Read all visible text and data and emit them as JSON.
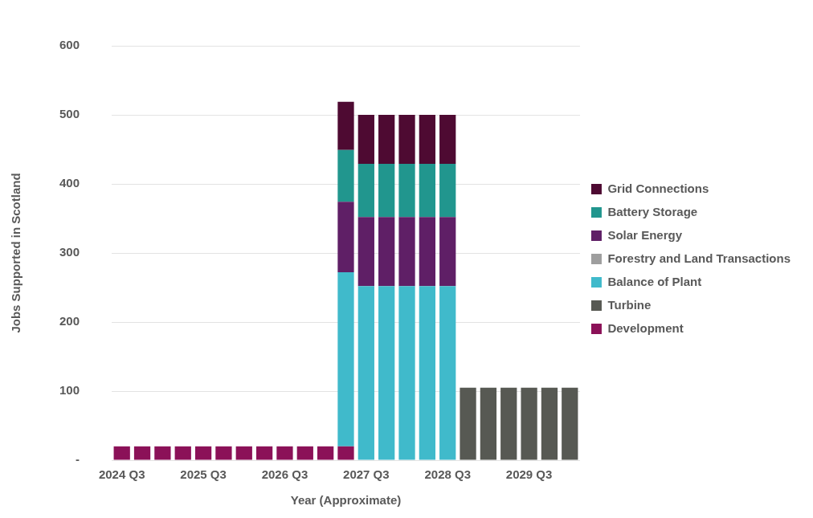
{
  "chart_data": {
    "type": "bar",
    "stacked": true,
    "xlabel": "Year (Approximate)",
    "ylabel": "Jobs Supported in Scotland",
    "categories": [
      "2024 Q3",
      null,
      null,
      null,
      "2025 Q3",
      null,
      null,
      null,
      "2026 Q3",
      null,
      null,
      null,
      "2027 Q3",
      null,
      null,
      null,
      "2028 Q3",
      null,
      null,
      null,
      "2029 Q3",
      null,
      null
    ],
    "series": [
      {
        "name": "Development",
        "color": "#8b1158",
        "values": [
          20,
          20,
          20,
          20,
          20,
          20,
          20,
          20,
          20,
          20,
          20,
          20,
          null,
          null,
          null,
          null,
          null,
          null,
          null,
          null,
          null,
          null,
          null
        ]
      },
      {
        "name": "Turbine",
        "color": "#575953",
        "values": [
          null,
          null,
          null,
          null,
          null,
          null,
          null,
          null,
          null,
          null,
          null,
          null,
          null,
          null,
          null,
          null,
          null,
          105,
          105,
          105,
          105,
          105,
          105
        ]
      },
      {
        "name": "Balance of Plant",
        "color": "#40bacb",
        "values": [
          null,
          null,
          null,
          null,
          null,
          null,
          null,
          null,
          null,
          null,
          null,
          252,
          252,
          252,
          252,
          252,
          252,
          null,
          null,
          null,
          null,
          null,
          null
        ]
      },
      {
        "name": "Forestry and Land Transactions",
        "color": "#9e9e9e",
        "values": [
          null,
          null,
          null,
          null,
          null,
          null,
          null,
          null,
          null,
          null,
          null,
          null,
          null,
          null,
          null,
          null,
          null,
          null,
          null,
          null,
          null,
          null,
          null
        ]
      },
      {
        "name": "Solar Energy",
        "color": "#5f1f66",
        "values": [
          null,
          null,
          null,
          null,
          null,
          null,
          null,
          null,
          null,
          null,
          null,
          102,
          100,
          100,
          100,
          100,
          100,
          null,
          null,
          null,
          null,
          null,
          null
        ]
      },
      {
        "name": "Battery Storage",
        "color": "#21968e",
        "values": [
          null,
          null,
          null,
          null,
          null,
          null,
          null,
          null,
          null,
          null,
          null,
          75,
          77,
          77,
          77,
          77,
          77,
          null,
          null,
          null,
          null,
          null,
          null
        ]
      },
      {
        "name": "Grid Connections",
        "color": "#4e0a32",
        "values": [
          null,
          null,
          null,
          null,
          null,
          null,
          null,
          null,
          null,
          null,
          null,
          70,
          71,
          71,
          71,
          71,
          71,
          null,
          null,
          null,
          null,
          null,
          null
        ]
      }
    ],
    "ylim": [
      0,
      600
    ],
    "yticks": [
      {
        "value": 0,
        "label": "-"
      },
      100,
      200,
      300,
      400,
      500,
      600
    ],
    "grid": "y",
    "legend": "right"
  }
}
